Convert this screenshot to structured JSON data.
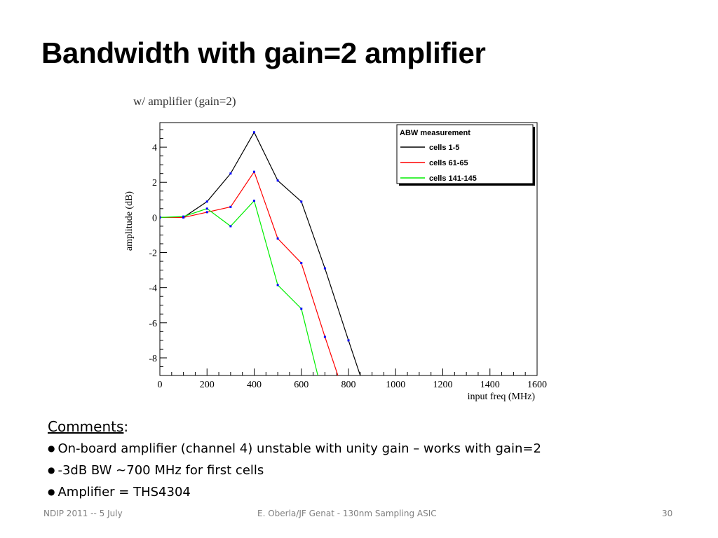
{
  "slide": {
    "title": "Bandwidth with gain=2 amplifier"
  },
  "comments": {
    "heading": "Comments",
    "heading_suffix": ":",
    "bullet_glyph": "●",
    "items": [
      "On-board amplifier (channel 4) unstable with unity gain – works with gain=2",
      "-3dB BW ~700 MHz for first cells",
      "Amplifier = THS4304"
    ]
  },
  "footer": {
    "left": "NDIP 2011 -- 5 July",
    "center": "E. Oberla/JF Genat - 130nm Sampling ASIC",
    "page": "30"
  },
  "chart_data": {
    "type": "line",
    "title": "w/ amplifier (gain=2)",
    "xlabel": "input freq (MHz)",
    "ylabel": "amplitude (dB)",
    "xlim": [
      0,
      1600
    ],
    "ylim": [
      -9,
      5.4
    ],
    "x_ticks": [
      0,
      200,
      400,
      600,
      800,
      1000,
      1200,
      1400,
      1600
    ],
    "y_ticks": [
      -8,
      -6,
      -4,
      -2,
      0,
      2,
      4
    ],
    "legend": {
      "title": "ABW measurement",
      "position": "top-right"
    },
    "series": [
      {
        "name": "cells 1-5",
        "color": "#000000",
        "points": [
          [
            0,
            0
          ],
          [
            100,
            0
          ],
          [
            200,
            0.9
          ],
          [
            300,
            2.5
          ],
          [
            400,
            4.85
          ],
          [
            500,
            2.1
          ],
          [
            600,
            0.9
          ],
          [
            700,
            -2.9
          ],
          [
            800,
            -7.0
          ],
          [
            850,
            -9.0
          ]
        ]
      },
      {
        "name": "cells 61-65",
        "color": "#ff0000",
        "points": [
          [
            0,
            0
          ],
          [
            100,
            0
          ],
          [
            200,
            0.3
          ],
          [
            300,
            0.6
          ],
          [
            400,
            2.6
          ],
          [
            500,
            -1.2
          ],
          [
            600,
            -2.6
          ],
          [
            700,
            -6.8
          ],
          [
            755,
            -9.0
          ]
        ]
      },
      {
        "name": "cells 141-145",
        "color": "#00ee00",
        "points": [
          [
            0,
            0
          ],
          [
            100,
            0.05
          ],
          [
            200,
            0.5
          ],
          [
            300,
            -0.5
          ],
          [
            400,
            0.95
          ],
          [
            500,
            -3.85
          ],
          [
            600,
            -5.2
          ],
          [
            670,
            -9.0
          ]
        ]
      }
    ],
    "marker_color": "#0000ff",
    "grid": false
  }
}
